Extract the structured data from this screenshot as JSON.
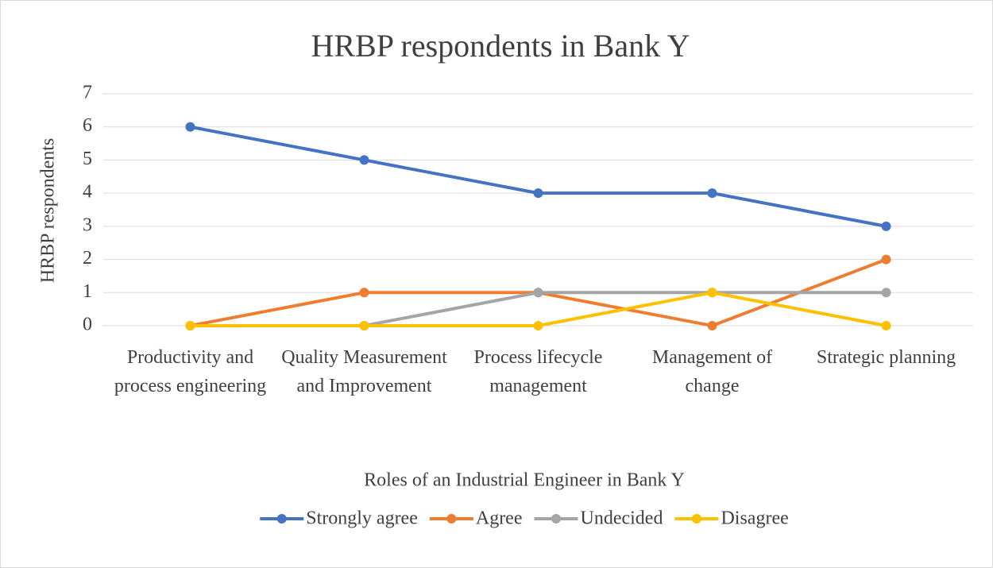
{
  "chart_data": {
    "type": "line",
    "title": "HRBP respondents in Bank Y",
    "x_label": "Roles of an Industrial Engineer in Bank Y",
    "y_label": "HRBP respondents",
    "categories": [
      "Productivity and process engineering",
      "Quality Measurement and Improvement",
      "Process lifecycle management",
      "Management of change",
      "Strategic planning"
    ],
    "series": [
      {
        "name": "Strongly agree",
        "color": "#4472c4",
        "values": [
          6,
          5,
          4,
          4,
          3
        ]
      },
      {
        "name": "Agree",
        "color": "#ed7d31",
        "values": [
          0,
          1,
          1,
          0,
          2
        ]
      },
      {
        "name": "Undecided",
        "color": "#a5a5a5",
        "values": [
          0,
          0,
          1,
          1,
          1
        ]
      },
      {
        "name": "Disagree",
        "color": "#ffc000",
        "values": [
          0,
          0,
          0,
          1,
          0
        ]
      }
    ],
    "ylim": [
      0,
      7
    ],
    "yticks": [
      0,
      1,
      2,
      3,
      4,
      5,
      6,
      7
    ],
    "grid": true,
    "legend": "bottom"
  }
}
